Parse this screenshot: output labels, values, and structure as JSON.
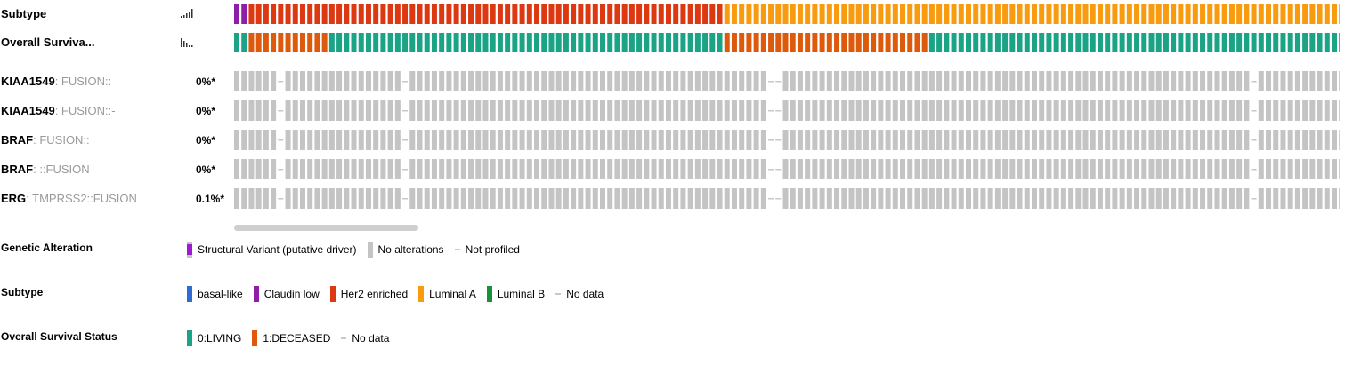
{
  "colors": {
    "basal_like": "#2e6bd6",
    "claudin_low": "#8e1da8",
    "her2_enriched": "#dc3912",
    "luminal_a": "#f89b0e",
    "luminal_b": "#1a9138",
    "living": "#1aa385",
    "deceased": "#dd5a0d",
    "no_alteration": "#c4c4c4",
    "sv_driver": "#9b1bd0",
    "not_profiled": "#c8c8c8"
  },
  "tracks": {
    "clinical": [
      {
        "label": "Subtype",
        "icon": "sort-bars-ascending-icon"
      },
      {
        "label": "Overall Surviva...",
        "icon": "sort-bars-descending-icon"
      }
    ],
    "genetic": [
      {
        "gene": "KIAA1549",
        "alteration": ": FUSION::",
        "pct": "0%*"
      },
      {
        "gene": "KIAA1549",
        "alteration": ": FUSION::-",
        "pct": "0%*"
      },
      {
        "gene": "BRAF",
        "alteration": ": FUSION::",
        "pct": "0%*"
      },
      {
        "gene": "BRAF",
        "alteration": ": ::FUSION",
        "pct": "0%*"
      },
      {
        "gene": "ERG",
        "alteration": ": TMPRSS2::FUSION",
        "pct": "0.1%*"
      }
    ]
  },
  "oncoprint": {
    "subtype_segments": [
      {
        "value": "claudin_low",
        "count": 2
      },
      {
        "value": "her2_enriched",
        "count": 65
      },
      {
        "value": "luminal_a",
        "count": 86
      }
    ],
    "survival_segments": [
      {
        "value": "living",
        "count": 2
      },
      {
        "value": "deceased",
        "count": 11
      },
      {
        "value": "living",
        "count": 54
      },
      {
        "value": "deceased",
        "count": 28
      },
      {
        "value": "living",
        "count": 58
      }
    ],
    "not_profiled_columns": [
      6,
      23,
      73,
      74,
      139
    ],
    "sv_driver_columns": []
  },
  "legend": {
    "genetic": {
      "title": "Genetic Alteration",
      "items": [
        {
          "label": "Structural Variant (putative driver)",
          "kind": "sv"
        },
        {
          "label": "No alterations",
          "kind": "none"
        },
        {
          "label": "Not profiled",
          "kind": "dash"
        }
      ]
    },
    "subtype": {
      "title": "Subtype",
      "items": [
        {
          "label": "basal-like",
          "kind": "basal_like"
        },
        {
          "label": "Claudin low",
          "kind": "claudin_low"
        },
        {
          "label": "Her2 enriched",
          "kind": "her2_enriched"
        },
        {
          "label": "Luminal A",
          "kind": "luminal_a"
        },
        {
          "label": "Luminal B",
          "kind": "luminal_b"
        },
        {
          "label": "No data",
          "kind": "dash"
        }
      ]
    },
    "survival": {
      "title": "Overall Survival Status",
      "items": [
        {
          "label": "0:LIVING",
          "kind": "living"
        },
        {
          "label": "1:DECEASED",
          "kind": "deceased"
        },
        {
          "label": "No data",
          "kind": "dash"
        }
      ]
    }
  }
}
